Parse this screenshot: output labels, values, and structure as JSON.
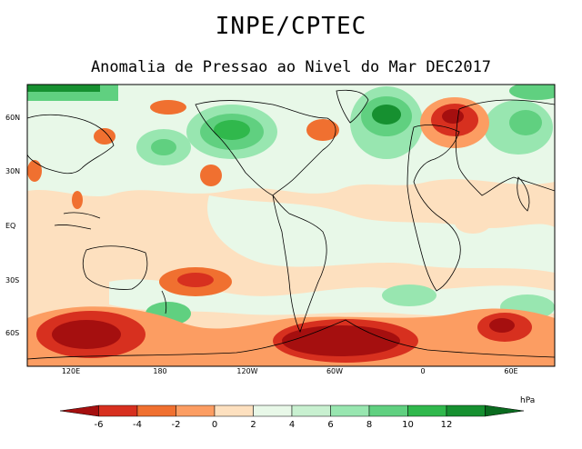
{
  "header": {
    "title": "INPE/CPTEC",
    "subtitle": "Anomalia de Pressao ao Nivel do Mar DEC2017"
  },
  "map": {
    "lat_labels": [
      "60N",
      "30N",
      "EQ",
      "30S",
      "60S"
    ],
    "lon_labels": [
      "120E",
      "180",
      "120W",
      "60W",
      "0",
      "60E"
    ]
  },
  "colorbar": {
    "units": "hPa",
    "labels": [
      "-6",
      "-4",
      "-2",
      "0",
      "2",
      "4",
      "6",
      "8",
      "10",
      "12"
    ],
    "colors": [
      "#a50f0f",
      "#d7301f",
      "#f07030",
      "#fc9d62",
      "#fde0bf",
      "#e8f8e8",
      "#c8f0d0",
      "#98e6b0",
      "#60d080",
      "#30b84c",
      "#169030",
      "#0a6b1f"
    ]
  }
}
